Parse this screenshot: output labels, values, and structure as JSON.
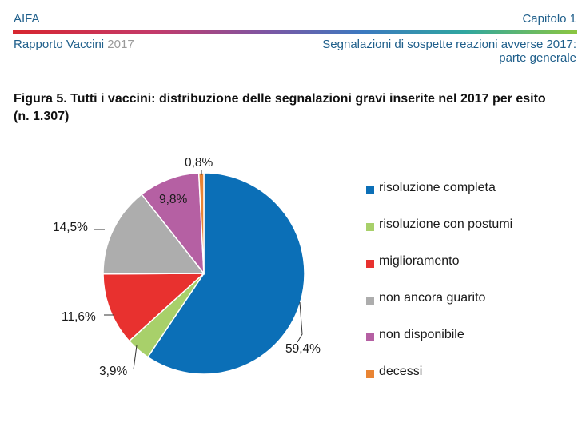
{
  "header": {
    "left_top": "AIFA",
    "right_top": "Capitolo 1",
    "left_bottom_main": "Rapporto Vaccini",
    "left_bottom_year": "2017",
    "right_bottom_line1": "Segnalazioni di sospette reazioni avverse 2017:",
    "right_bottom_line2": "parte generale"
  },
  "figure": {
    "title_line1": "Figura 5. Tutti i vaccini: distribuzione delle segnalazioni gravi inserite nel 2017 per esito",
    "title_line2": "(n. 1.307)"
  },
  "chart_data": {
    "type": "pie",
    "title": "Figura 5. Tutti i vaccini: distribuzione delle segnalazioni gravi inserite nel 2017 per esito (n. 1.307)",
    "categories": [
      "risoluzione completa",
      "risoluzione con postumi",
      "miglioramento",
      "non ancora guarito",
      "non disponibile",
      "decessi"
    ],
    "values": [
      59.4,
      3.9,
      11.6,
      14.5,
      9.8,
      0.8
    ],
    "labels": [
      "59,4%",
      "3,9%",
      "11,6%",
      "14,5%",
      "9,8%",
      "0,8%"
    ],
    "colors": [
      "#0b6fb7",
      "#a8d06a",
      "#e8312f",
      "#adadad",
      "#b560a3",
      "#e98433"
    ],
    "legend_position": "right"
  }
}
